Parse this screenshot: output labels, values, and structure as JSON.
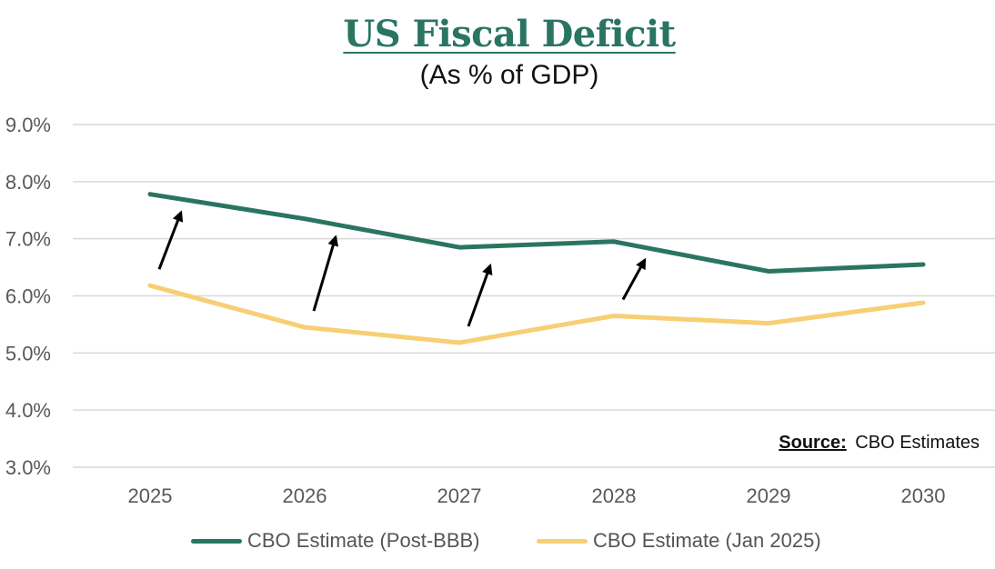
{
  "chart_data": {
    "type": "line",
    "title": "US Fiscal Deficit",
    "subtitle": "(As % of GDP)",
    "x": [
      "2025",
      "2026",
      "2027",
      "2028",
      "2029",
      "2030"
    ],
    "ylim": [
      3.0,
      9.0
    ],
    "yticks": [
      "3.0%",
      "4.0%",
      "5.0%",
      "6.0%",
      "7.0%",
      "8.0%",
      "9.0%"
    ],
    "grid": true,
    "legend_position": "bottom",
    "series": [
      {
        "name": "CBO Estimate (Post-BBB)",
        "color": "#2a7562",
        "values": [
          7.78,
          7.35,
          6.85,
          6.95,
          6.43,
          6.55
        ]
      },
      {
        "name": "CBO Estimate (Jan 2025)",
        "color": "#f7cf74",
        "values": [
          6.18,
          5.45,
          5.18,
          5.65,
          5.52,
          5.88
        ]
      }
    ],
    "annotations": {
      "arrows_from_series": "CBO Estimate (Jan 2025)",
      "arrows_to_series": "CBO Estimate (Post-BBB)",
      "arrow_categories": [
        "2025",
        "2026",
        "2027",
        "2028"
      ],
      "source_label": "Source:",
      "source_text": "CBO Estimates"
    }
  }
}
